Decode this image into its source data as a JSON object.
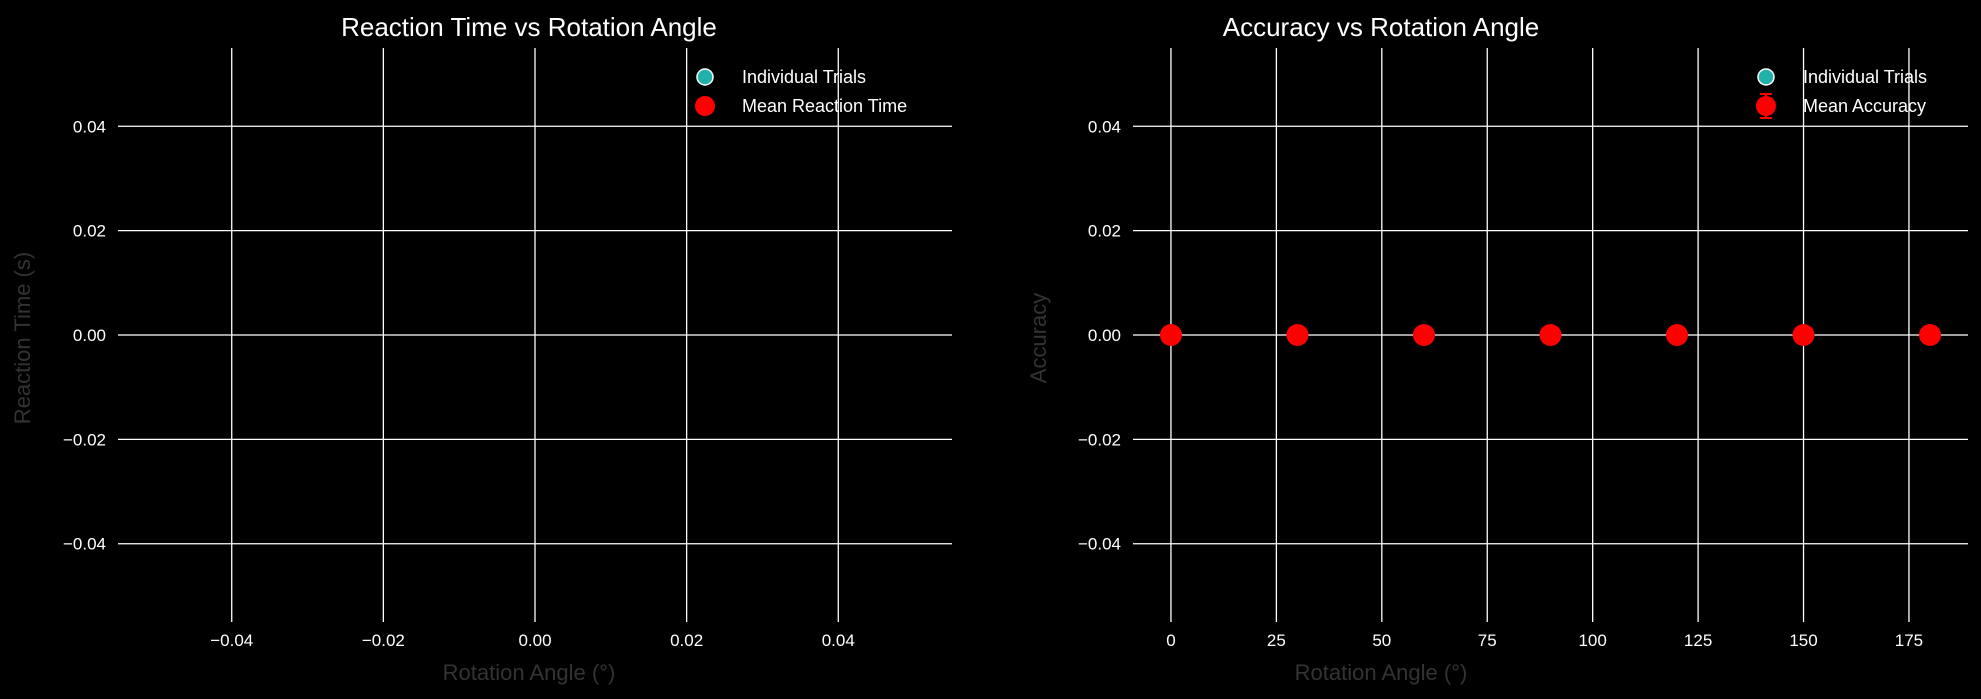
{
  "colors": {
    "background": "#000000",
    "grid": "#ffffff",
    "text": "#ffffff",
    "axis_label": "#333333",
    "trial_marker": "#20b2aa",
    "mean_marker": "#ff0000"
  },
  "chart_data": [
    {
      "type": "scatter",
      "title": "Reaction Time vs Rotation Angle",
      "xlabel": "Rotation Angle (°)",
      "ylabel": "Reaction Time (s)",
      "xlim": [
        -0.055,
        0.055
      ],
      "ylim": [
        -0.055,
        0.055
      ],
      "xticks": [
        -0.04,
        -0.02,
        0.0,
        0.02,
        0.04
      ],
      "xtick_labels": [
        "−0.04",
        "−0.02",
        "0.00",
        "0.02",
        "0.04"
      ],
      "yticks": [
        0.04,
        0.02,
        0.0,
        -0.02,
        -0.04
      ],
      "ytick_labels": [
        "0.04",
        "0.02",
        "0.00",
        "−0.02",
        "−0.04"
      ],
      "grid": true,
      "legend_position": "top-right",
      "legend": [
        {
          "label": "Individual Trials",
          "marker": "circle",
          "color": "#20b2aa"
        },
        {
          "label": "Mean Reaction Time",
          "marker": "circle",
          "color": "#ff0000"
        }
      ],
      "series": [
        {
          "name": "Individual Trials",
          "x": [],
          "y": []
        },
        {
          "name": "Mean Reaction Time",
          "x": [],
          "y": []
        }
      ]
    },
    {
      "type": "scatter",
      "title": "Accuracy vs Rotation Angle",
      "xlabel": "Rotation Angle (°)",
      "ylabel": "Accuracy",
      "xlim": [
        -9,
        189
      ],
      "ylim": [
        -0.055,
        0.055
      ],
      "xticks": [
        0,
        25,
        50,
        75,
        100,
        125,
        150,
        175
      ],
      "xtick_labels": [
        "0",
        "25",
        "50",
        "75",
        "100",
        "125",
        "150",
        "175"
      ],
      "yticks": [
        0.04,
        0.02,
        0.0,
        -0.02,
        -0.04
      ],
      "ytick_labels": [
        "0.04",
        "0.02",
        "0.00",
        "−0.02",
        "−0.04"
      ],
      "grid": true,
      "legend_position": "top-right",
      "legend": [
        {
          "label": "Individual Trials",
          "marker": "circle",
          "color": "#20b2aa"
        },
        {
          "label": "Mean Accuracy",
          "marker": "errorbar-circle",
          "color": "#ff0000"
        }
      ],
      "series": [
        {
          "name": "Individual Trials",
          "x": [],
          "y": []
        },
        {
          "name": "Mean Accuracy",
          "x": [
            0,
            30,
            60,
            90,
            120,
            150,
            180
          ],
          "y": [
            0,
            0,
            0,
            0,
            0,
            0,
            0
          ]
        }
      ]
    }
  ]
}
